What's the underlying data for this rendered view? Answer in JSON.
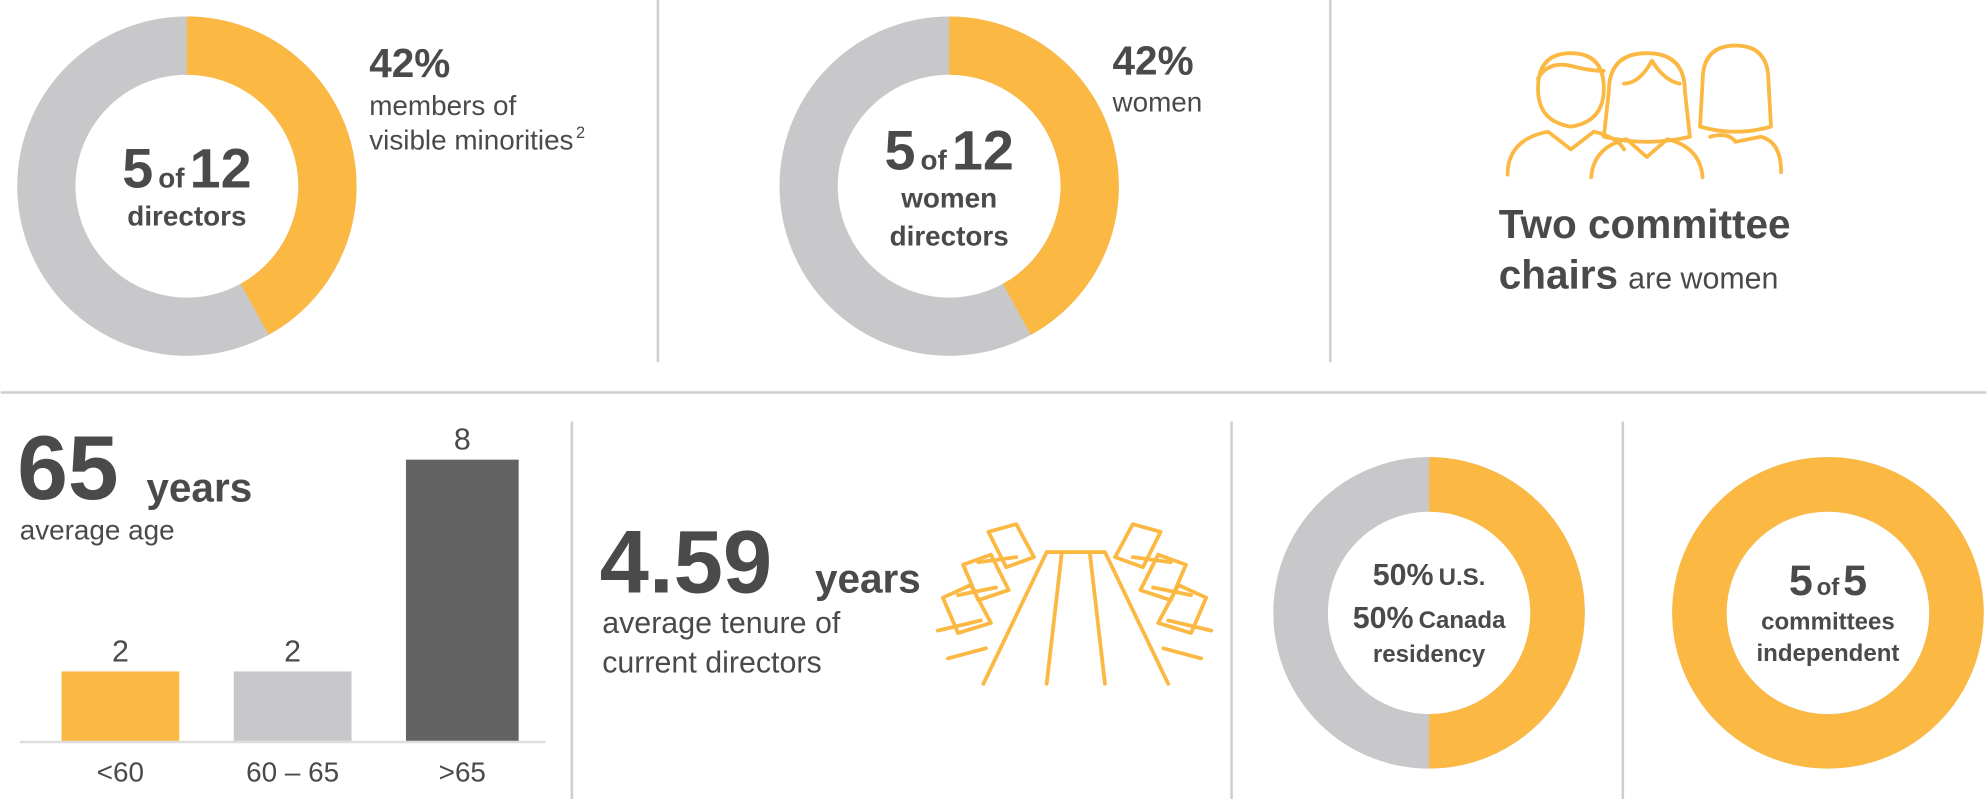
{
  "chart_data": [
    {
      "type": "donut",
      "values": [
        42
      ],
      "value_labels": [
        "42%"
      ],
      "color": "#fbb943",
      "track_color": "#c8c8ca",
      "center": {
        "count": "5",
        "of": "of",
        "total": "12",
        "lines": [
          "directors"
        ]
      },
      "caption": [
        "members of",
        "visible minorities"
      ],
      "footnote": "2"
    },
    {
      "type": "donut",
      "values": [
        42
      ],
      "value_labels": [
        "42%"
      ],
      "color": "#fbb943",
      "track_color": "#c8c8ca",
      "center": {
        "count": "5",
        "of": "of",
        "total": "12",
        "lines": [
          "women",
          "directors"
        ]
      },
      "caption": [
        "women"
      ]
    },
    {
      "type": "bar",
      "categories": [
        "<60",
        "60 – 65",
        ">65"
      ],
      "values": [
        2,
        2,
        8
      ],
      "colors": [
        "#fbb943",
        "#c8c8ca",
        "#636363"
      ],
      "headline": {
        "value": "65",
        "unit": "years",
        "label": "average age"
      }
    },
    {
      "type": "donut",
      "track_color": "#c8c8ca",
      "series": [
        {
          "name": "U.S.",
          "color": "#fbb943",
          "values": [
            50
          ],
          "value_labels": [
            "50%"
          ]
        },
        {
          "name": "Canada",
          "color": "#c8c8ca",
          "values": [
            50
          ],
          "value_labels": [
            "50%"
          ]
        }
      ],
      "center": {
        "lines": [
          "residency"
        ]
      }
    },
    {
      "type": "donut",
      "values": [
        100
      ],
      "color": "#fbb943",
      "track_color": "#c8c8ca",
      "center": {
        "count": "5",
        "of": "of",
        "total": "5",
        "lines": [
          "committees",
          "independent"
        ]
      }
    }
  ],
  "chairs": {
    "bold": [
      "Two committee",
      "chairs"
    ],
    "rest": "are women"
  },
  "tenure": {
    "value": "4.59",
    "unit": "years",
    "lines": [
      "average tenure of",
      "current directors"
    ]
  }
}
